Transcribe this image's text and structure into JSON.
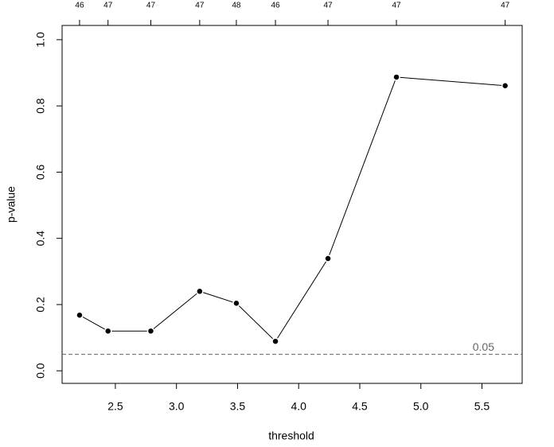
{
  "chart_data": {
    "type": "line",
    "x_label": "threshold",
    "y_label": "p-value",
    "x": [
      2.207,
      2.44,
      2.79,
      3.19,
      3.49,
      3.81,
      4.24,
      4.8,
      5.69
    ],
    "series": [
      {
        "color": "#000000",
        "values": [
          0.168,
          0.12,
          0.12,
          0.24,
          0.204,
          0.089,
          0.339,
          0.887,
          0.861
        ]
      }
    ],
    "top_labels": [
      46,
      47,
      47,
      47,
      48,
      46,
      47,
      47,
      47
    ],
    "xlim": [
      2.064,
      5.829
    ],
    "ylim": [
      -0.038,
      1.043
    ],
    "xticks": [
      2.5,
      {
        "value": 3,
        "label": "3.0"
      },
      3.5,
      {
        "value": 4,
        "label": "4.0"
      },
      4.5,
      {
        "value": 5,
        "label": "5.0"
      },
      5.5
    ],
    "yticks": [
      {
        "value": 0,
        "label": "0.0"
      },
      0.2,
      0.4,
      0.6,
      0.8,
      {
        "value": 1,
        "label": "1.0"
      }
    ],
    "hline": {
      "value": 0.05,
      "color": "#666666"
    }
  }
}
